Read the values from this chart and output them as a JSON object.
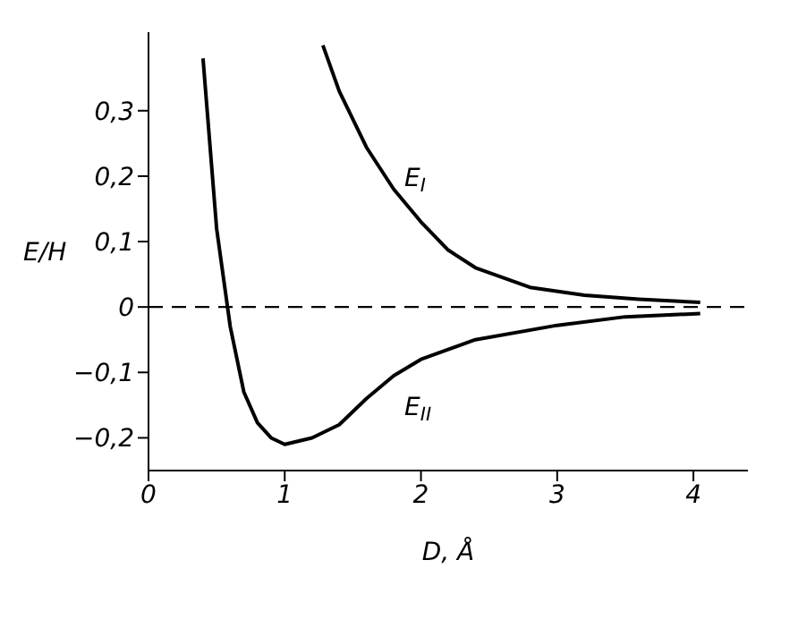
{
  "chart_data": {
    "type": "line",
    "xlabel": "D, Å",
    "ylabel": "E/H",
    "series": [
      {
        "name": "E$_{I}$",
        "color": "#000000",
        "x": [
          1.28,
          1.4,
          1.6,
          1.8,
          2.0,
          2.2,
          2.4,
          2.8,
          3.2,
          3.6,
          4.05
        ],
        "values": [
          0.4,
          0.33,
          0.244,
          0.18,
          0.13,
          0.087,
          0.06,
          0.03,
          0.018,
          0.012,
          0.007
        ]
      },
      {
        "name": "E$_{II}$",
        "color": "#000000",
        "x": [
          0.4,
          0.5,
          0.6,
          0.7,
          0.8,
          0.9,
          1.0,
          1.2,
          1.4,
          1.6,
          1.8,
          2.0,
          2.4,
          3.0,
          3.5,
          4.05
        ],
        "values": [
          0.38,
          0.12,
          -0.03,
          -0.13,
          -0.177,
          -0.2,
          -0.21,
          -0.2,
          -0.18,
          -0.14,
          -0.105,
          -0.08,
          -0.05,
          -0.028,
          -0.015,
          -0.01
        ]
      }
    ],
    "ref_lines": [
      {
        "axis": "y",
        "value": 0,
        "line_style": "dashed",
        "color": "#000000"
      }
    ],
    "xlim": [
      0,
      4.4
    ],
    "ylim": [
      -0.25,
      0.42
    ],
    "xticks": [
      0,
      1,
      2,
      3,
      4
    ],
    "yticks": [
      {
        "value": -0.2,
        "label": "−0,2"
      },
      {
        "value": -0.1,
        "label": "−0,1"
      },
      {
        "value": 0,
        "label": "0"
      },
      {
        "value": 0.1,
        "label": "0,1"
      },
      {
        "value": 0.2,
        "label": "0,2"
      },
      {
        "value": 0.3,
        "label": "0,3"
      }
    ],
    "grid": false,
    "legend": false,
    "marker": "none",
    "line_style": "solid"
  }
}
